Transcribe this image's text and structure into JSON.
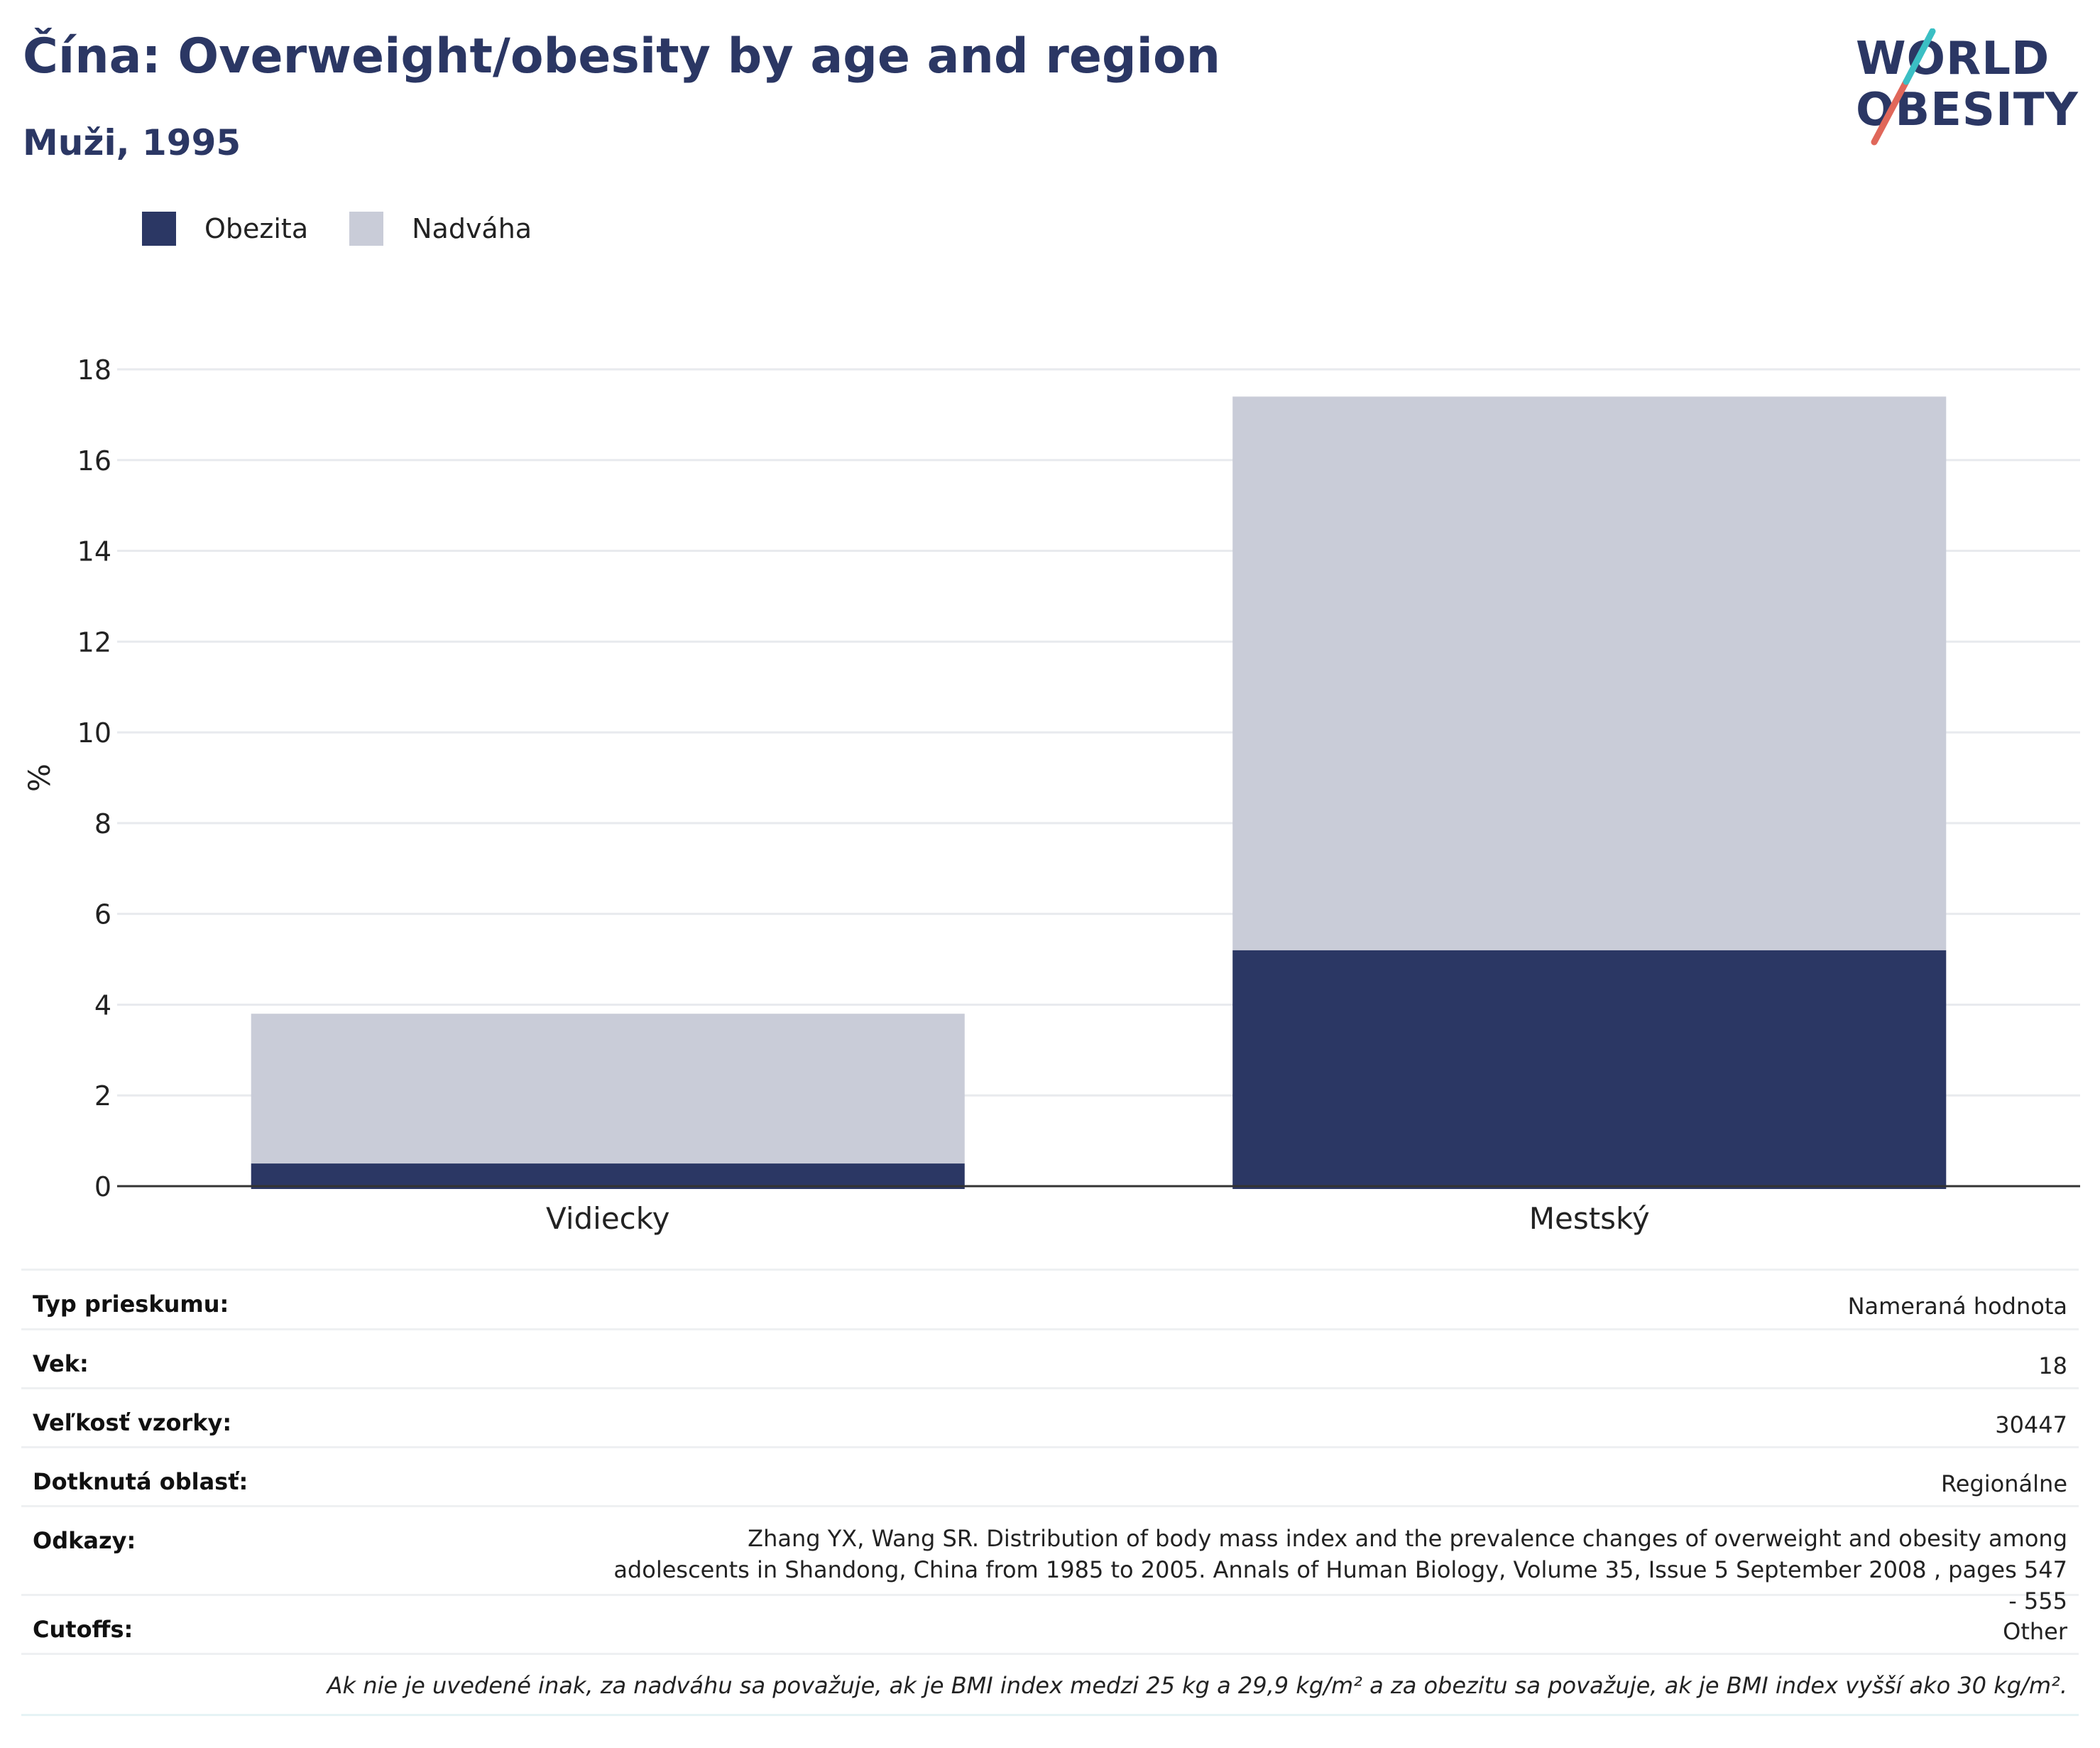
{
  "header": {
    "title": "Čína: Overweight/obesity by age and region",
    "subtitle": "Muži, 1995"
  },
  "logo": {
    "line1": "WORLD",
    "line2": "OBESITY",
    "text_color": "#2b3764",
    "slash_colors": [
      "#e0675a",
      "#3bbfc4"
    ]
  },
  "legend": {
    "items": [
      {
        "label": "Obezita",
        "color": "#2b3764"
      },
      {
        "label": "Nadváha",
        "color": "#c9ccd8"
      }
    ]
  },
  "chart_data": {
    "type": "bar",
    "stacked": true,
    "categories": [
      "Vidiecky",
      "Mestský"
    ],
    "series": [
      {
        "name": "Obezita",
        "color": "#2b3764",
        "values": [
          0.5,
          5.2
        ]
      },
      {
        "name": "Nadváha",
        "color": "#c9ccd8",
        "values": [
          3.3,
          12.2
        ]
      }
    ],
    "ylabel": "%",
    "ylim": [
      0,
      18
    ],
    "yticks": [
      0,
      2,
      4,
      6,
      8,
      10,
      12,
      14,
      16,
      18
    ],
    "grid": true,
    "legend_position": "top-left"
  },
  "info": {
    "rows": [
      {
        "label": "Typ prieskumu:",
        "value": "Nameraná hodnota"
      },
      {
        "label": "Vek:",
        "value": "18"
      },
      {
        "label": "Veľkosť vzorky:",
        "value": "30447"
      },
      {
        "label": "Dotknutá oblasť:",
        "value": "Regionálne"
      },
      {
        "label": "Odkazy:",
        "value": "Zhang YX, Wang SR. Distribution of body mass index and the prevalence changes of overweight and obesity among adolescents in Shandong, China from 1985 to 2005. Annals of Human Biology, Volume 35, Issue 5 September 2008 , pages 547 - 555"
      },
      {
        "label": "Cutoffs:",
        "value": "Other"
      }
    ],
    "note": "Ak nie je uvedené inak, za nadváhu sa považuje, ak je BMI index medzi 25 kg a 29,9 kg/m² a za obezitu sa považuje, ak je BMI index vyšší ako 30 kg/m²."
  }
}
